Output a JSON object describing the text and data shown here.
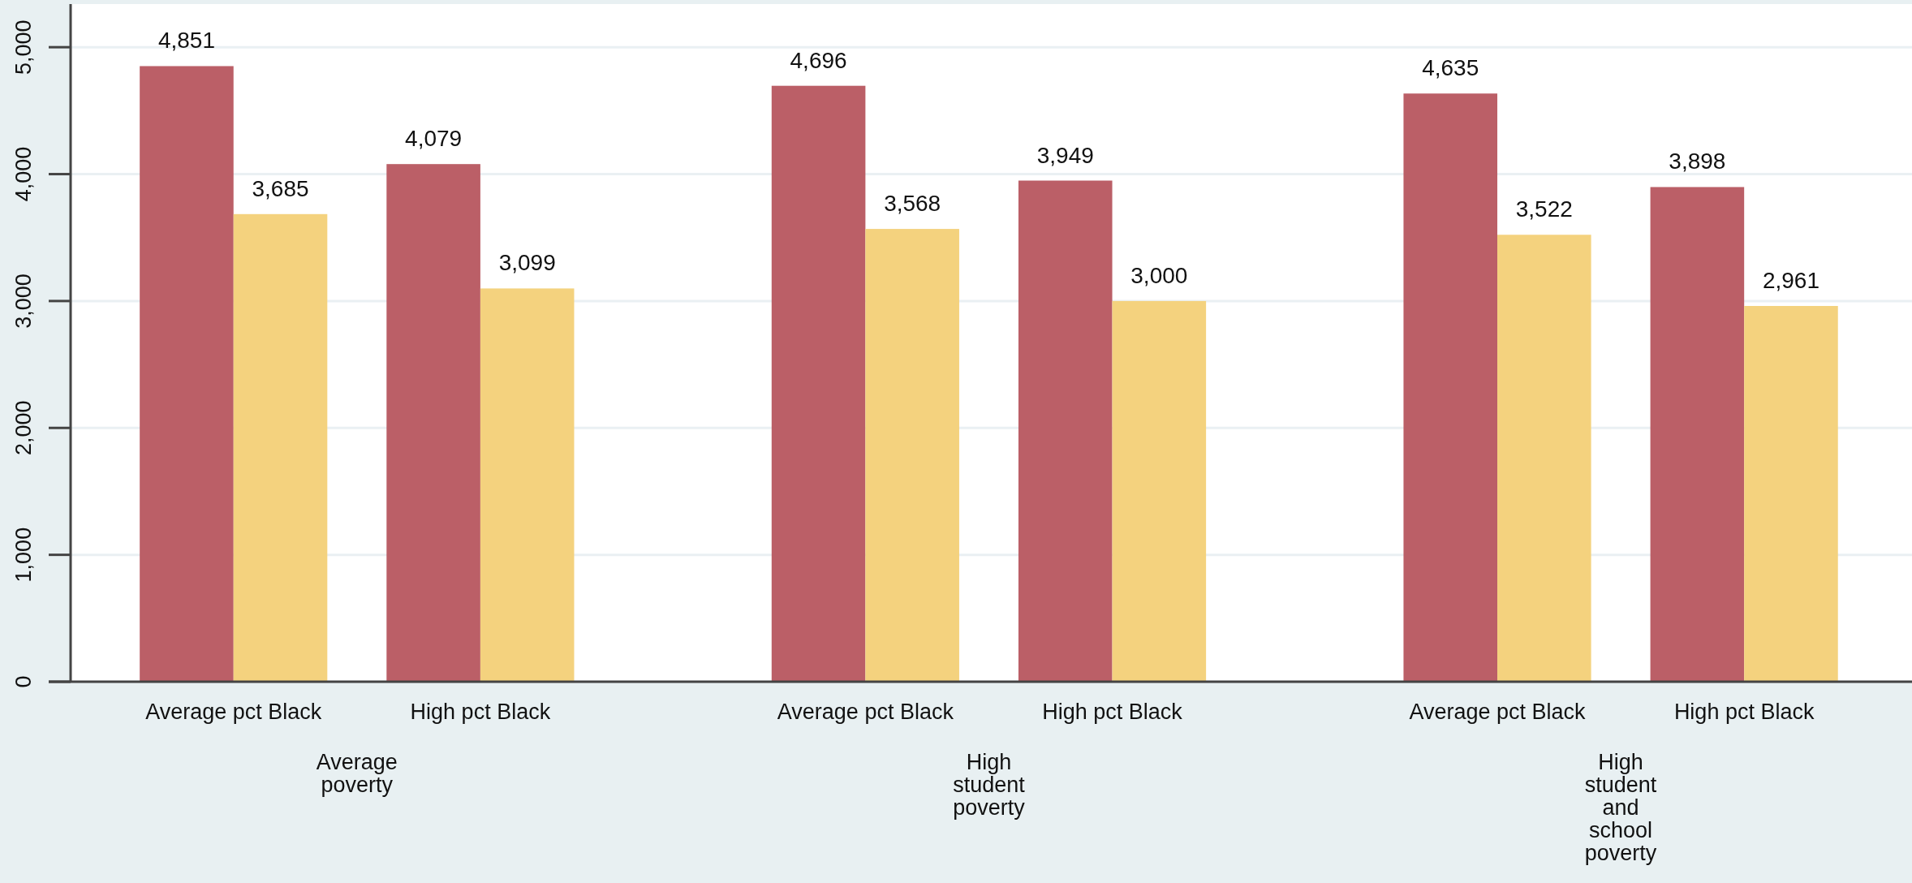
{
  "chart_data": {
    "type": "bar",
    "categories": [
      "Average pct Black",
      "High pct Black",
      "Average pct Black",
      "High pct Black",
      "Average pct Black",
      "High pct Black"
    ],
    "series": [
      {
        "color": "#bb5f67",
        "values": [
          4851,
          4079,
          4696,
          3949,
          4635,
          3898
        ],
        "value_labels": [
          "4,851",
          "4,079",
          "4,696",
          "3,949",
          "4,635",
          "3,898"
        ]
      },
      {
        "color": "#f4d27e",
        "values": [
          3685,
          3099,
          3568,
          3000,
          3522,
          2961
        ],
        "value_labels": [
          "3,685",
          "3,099",
          "3,568",
          "3,000",
          "3,522",
          "2,961"
        ]
      }
    ],
    "annotations": [
      "Average poverty",
      "High student poverty",
      "High student and school poverty"
    ],
    "ylim": [
      0,
      5340
    ],
    "yticks": [
      {
        "value": 0,
        "label": "0"
      },
      {
        "value": 1000,
        "label": "1,000"
      },
      {
        "value": 2000,
        "label": "2,000"
      },
      {
        "value": 3000,
        "label": "3,000"
      },
      {
        "value": 4000,
        "label": "4,000"
      },
      {
        "value": 5000,
        "label": "5,000"
      }
    ],
    "grid": "y"
  }
}
